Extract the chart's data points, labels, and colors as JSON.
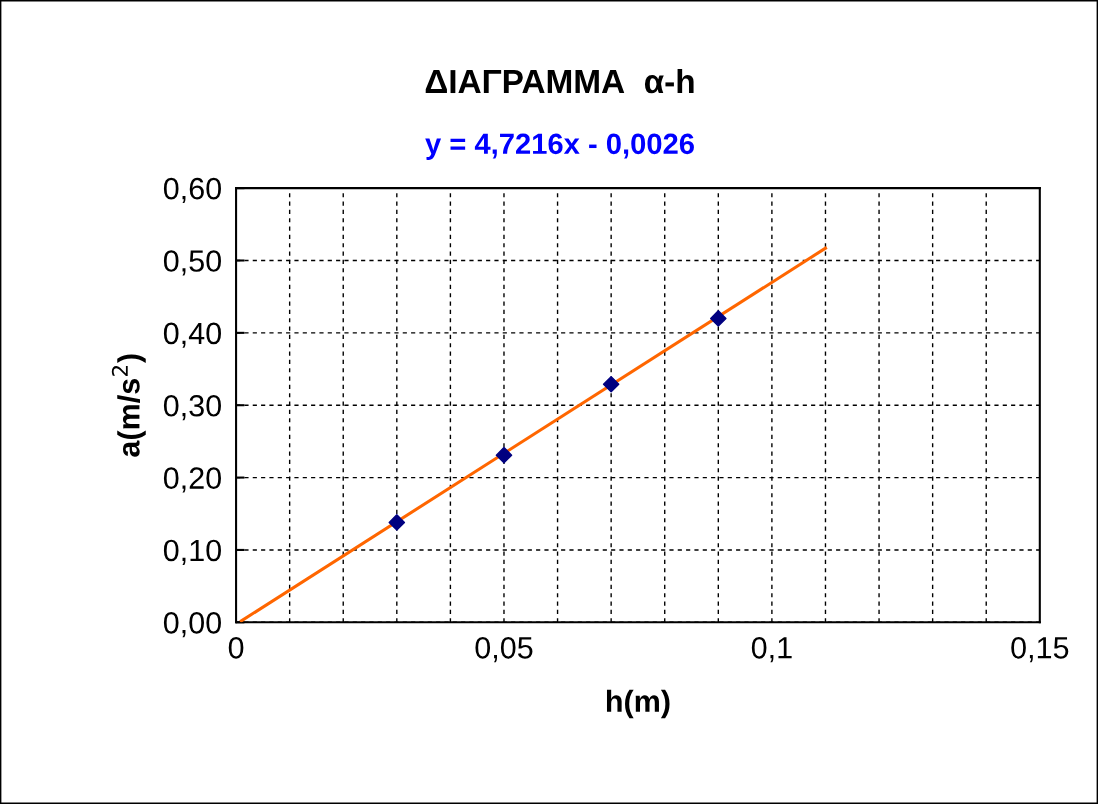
{
  "chart_data": {
    "type": "scatter",
    "title": "ΔΙΑΓΡΑΜΜΑ  α-h",
    "subtitle": "y = 4,7216x - 0,0026",
    "xlabel": "h(m)",
    "ylabel": "a(m/s$^{2}$)",
    "series": [
      {
        "color": "#000080",
        "marker": "diamond",
        "x": [
          0.03,
          0.05,
          0.07,
          0.09
        ],
        "values": [
          0.138,
          0.231,
          0.329,
          0.42
        ]
      },
      {
        "type": "line",
        "color": "#ff6600",
        "marker": "none",
        "line_style": "solid",
        "x": [
          0.001,
          0.11
        ],
        "values": [
          0.002,
          0.517
        ]
      }
    ],
    "xlim": [
      0,
      0.15
    ],
    "ylim": [
      0,
      0.6
    ],
    "xticks": [
      {
        "value": 0,
        "label": "0"
      },
      {
        "value": 0.01,
        "label": null
      },
      {
        "value": 0.02,
        "label": null
      },
      {
        "value": 0.03,
        "label": null
      },
      {
        "value": 0.04,
        "label": null
      },
      {
        "value": 0.05,
        "label": "0,05"
      },
      {
        "value": 0.06,
        "label": null
      },
      {
        "value": 0.07,
        "label": null
      },
      {
        "value": 0.08,
        "label": null
      },
      {
        "value": 0.09,
        "label": null
      },
      {
        "value": 0.1,
        "label": "0,1"
      },
      {
        "value": 0.11,
        "label": null
      },
      {
        "value": 0.12,
        "label": null
      },
      {
        "value": 0.13,
        "label": null
      },
      {
        "value": 0.14,
        "label": null
      },
      {
        "value": 0.15,
        "label": "0,15"
      }
    ],
    "yticks": [
      {
        "value": 0,
        "label": "0,00"
      },
      {
        "value": 0.1,
        "label": "0,10"
      },
      {
        "value": 0.2,
        "label": "0,20"
      },
      {
        "value": 0.3,
        "label": "0,30"
      },
      {
        "value": 0.4,
        "label": "0,40"
      },
      {
        "value": 0.5,
        "label": "0,50"
      },
      {
        "value": 0.6,
        "label": "0,60"
      }
    ],
    "grid": true,
    "legend": false
  }
}
